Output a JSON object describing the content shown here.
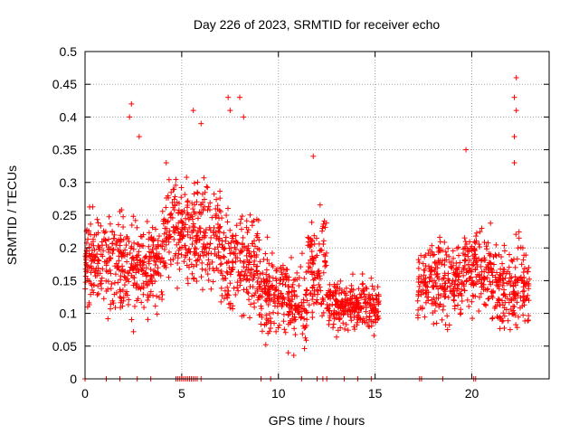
{
  "chart_data": {
    "type": "scatter",
    "title": "Day 226 of 2023, SRMTID for receiver echo",
    "xlabel": "GPS time / hours",
    "ylabel": "SRMTID / TECUs",
    "xlim": [
      0,
      24
    ],
    "ylim": [
      0,
      0.5
    ],
    "xticks": [
      0,
      5,
      10,
      15,
      20
    ],
    "yticks": [
      0,
      0.05,
      0.1,
      0.15,
      0.2,
      0.25,
      0.3,
      0.35,
      0.4,
      0.45,
      0.5
    ],
    "xtick_labels": [
      "0",
      "5",
      "10",
      "15",
      "20"
    ],
    "ytick_labels": [
      "0",
      "0.05",
      "0.1",
      "0.15",
      "0.2",
      "0.25",
      "0.3",
      "0.35",
      "0.4",
      "0.45",
      "0.5"
    ],
    "grid": true,
    "legend": "none",
    "marker": "+",
    "series": [
      {
        "name": "SRMTID",
        "color": "#ff0000",
        "segments": [
          {
            "x_start": 0.0,
            "x_end": 2.3,
            "level": 0.18,
            "spread": 0.06
          },
          {
            "x_start": 2.3,
            "x_end": 4.0,
            "level": 0.17,
            "spread": 0.06
          },
          {
            "x_start": 4.0,
            "x_end": 5.2,
            "level": 0.23,
            "spread": 0.06
          },
          {
            "x_start": 5.2,
            "x_end": 7.0,
            "level": 0.22,
            "spread": 0.06
          },
          {
            "x_start": 7.0,
            "x_end": 9.0,
            "level": 0.18,
            "spread": 0.07
          },
          {
            "x_start": 9.0,
            "x_end": 10.5,
            "level": 0.13,
            "spread": 0.05
          },
          {
            "x_start": 10.5,
            "x_end": 11.5,
            "level": 0.11,
            "spread": 0.05
          },
          {
            "x_start": 11.5,
            "x_end": 12.5,
            "level": 0.18,
            "spread": 0.06
          },
          {
            "x_start": 12.5,
            "x_end": 15.2,
            "level": 0.11,
            "spread": 0.03
          },
          {
            "x_start": 17.2,
            "x_end": 19.5,
            "level": 0.15,
            "spread": 0.05
          },
          {
            "x_start": 19.5,
            "x_end": 21.0,
            "level": 0.17,
            "spread": 0.05
          },
          {
            "x_start": 21.0,
            "x_end": 23.0,
            "level": 0.14,
            "spread": 0.05
          }
        ],
        "spikes": [
          {
            "x": 2.4,
            "y": 0.42
          },
          {
            "x": 2.3,
            "y": 0.4
          },
          {
            "x": 2.8,
            "y": 0.37
          },
          {
            "x": 4.2,
            "y": 0.33
          },
          {
            "x": 5.6,
            "y": 0.41
          },
          {
            "x": 6.0,
            "y": 0.39
          },
          {
            "x": 7.4,
            "y": 0.43
          },
          {
            "x": 7.5,
            "y": 0.41
          },
          {
            "x": 8.0,
            "y": 0.43
          },
          {
            "x": 8.2,
            "y": 0.4
          },
          {
            "x": 11.8,
            "y": 0.34
          },
          {
            "x": 19.7,
            "y": 0.35
          },
          {
            "x": 22.3,
            "y": 0.46
          },
          {
            "x": 22.2,
            "y": 0.43
          },
          {
            "x": 22.3,
            "y": 0.41
          },
          {
            "x": 22.2,
            "y": 0.37
          },
          {
            "x": 22.2,
            "y": 0.33
          }
        ],
        "zero_values_x": [
          0,
          1.1,
          1.8,
          2.7,
          3.4,
          4.7,
          4.8,
          4.9,
          5.0,
          5.1,
          5.2,
          5.3,
          5.4,
          5.5,
          5.6,
          5.7,
          5.8,
          6.0,
          9.1,
          9.6,
          11.2,
          12.0,
          12.3,
          12.5,
          13.4,
          14.1,
          14.8,
          17.3,
          17.4,
          18.5,
          20.1,
          20.2
        ]
      }
    ]
  }
}
